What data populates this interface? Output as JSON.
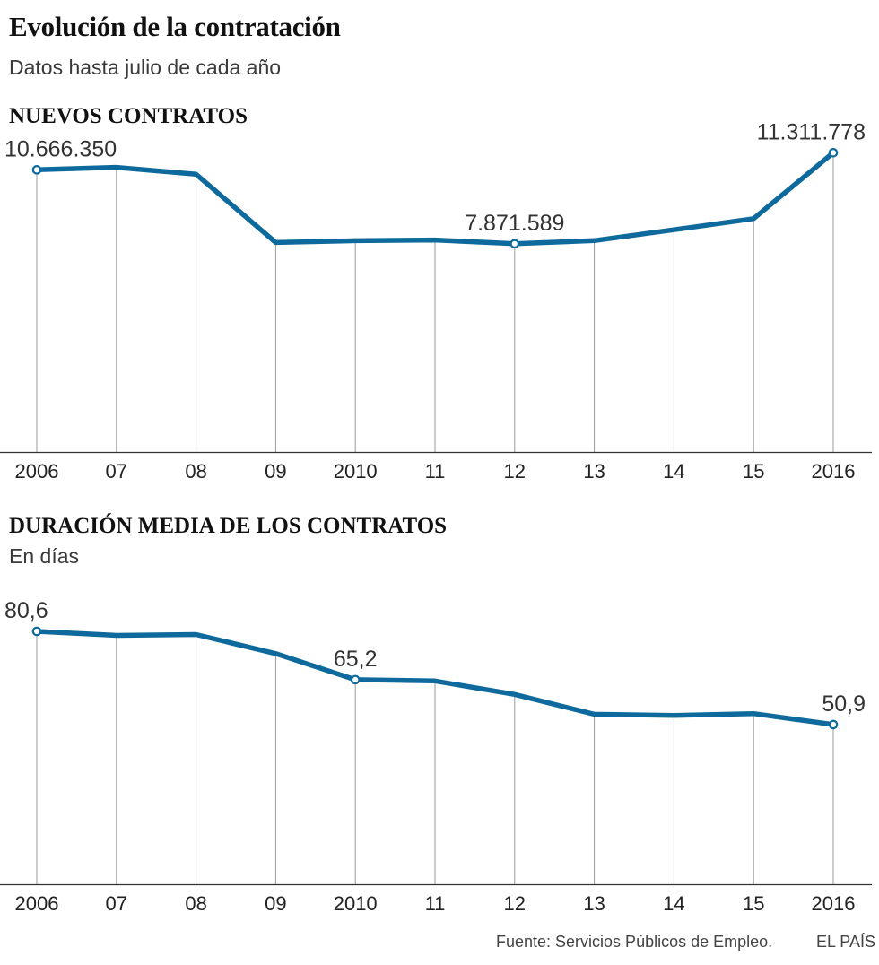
{
  "header": {
    "title": "Evolución de la contratación",
    "subtitle": "Datos hasta julio de cada año"
  },
  "chart_data": [
    {
      "type": "line",
      "title": "NUEVOS CONTRATOS",
      "subtitle": "",
      "xlabel": "",
      "ylabel": "",
      "categories": [
        "2006",
        "07",
        "08",
        "09",
        "2010",
        "11",
        "12",
        "13",
        "14",
        "15",
        "2016"
      ],
      "series": [
        {
          "name": "Nuevos contratos",
          "values": [
            10666350,
            10760000,
            10500000,
            7920000,
            7985000,
            8015000,
            7871589,
            7990000,
            8400000,
            8820000,
            11311778
          ]
        }
      ],
      "labels": [
        {
          "index": 0,
          "text": "10.666.350"
        },
        {
          "index": 6,
          "text": "7.871.589"
        },
        {
          "index": 10,
          "text": "11.311.778"
        }
      ],
      "ylim": [
        0,
        12000000
      ],
      "grid": true,
      "color": "#0e6a9c"
    },
    {
      "type": "line",
      "title": "DURACIÓN MEDIA DE LOS CONTRATOS",
      "subtitle": "En días",
      "xlabel": "",
      "ylabel": "",
      "categories": [
        "2006",
        "07",
        "08",
        "09",
        "2010",
        "11",
        "12",
        "13",
        "14",
        "15",
        "2016"
      ],
      "series": [
        {
          "name": "Duración media",
          "values": [
            80.6,
            79.3,
            79.6,
            73.5,
            65.2,
            64.8,
            60.5,
            54.2,
            53.8,
            54.4,
            50.9
          ]
        }
      ],
      "labels": [
        {
          "index": 0,
          "text": "80,6"
        },
        {
          "index": 4,
          "text": "65,2"
        },
        {
          "index": 10,
          "text": "50,9"
        }
      ],
      "ylim": [
        0,
        80.6
      ],
      "grid": true,
      "color": "#0e6a9c"
    }
  ],
  "footer": {
    "source": "Fuente: Servicios Públicos de Empleo.",
    "brand": "EL PAÍS"
  }
}
